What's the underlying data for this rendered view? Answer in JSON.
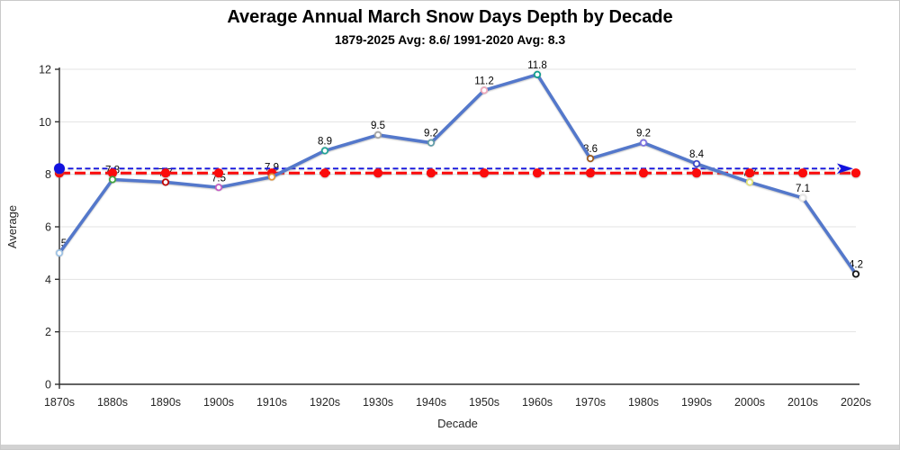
{
  "chart_data": {
    "type": "line",
    "title": "Average Annual March Snow Days Depth by Decade",
    "subtitle": "1879-2025 Avg: 8.6/ 1991-2020 Avg: 8.3",
    "xlabel": "Decade",
    "ylabel": "Average",
    "ylim": [
      0,
      12
    ],
    "yticks": [
      0,
      2,
      4,
      6,
      8,
      10,
      12
    ],
    "grid": true,
    "legend": "none",
    "categories": [
      "1870s",
      "1880s",
      "1890s",
      "1900s",
      "1910s",
      "1920s",
      "1930s",
      "1940s",
      "1950s",
      "1960s",
      "1970s",
      "1980s",
      "1990s",
      "2000s",
      "2010s",
      "2020s"
    ],
    "series": [
      {
        "values": [
          5,
          7.8,
          7.7,
          7.5,
          7.9,
          8.9,
          9.5,
          9.2,
          11.2,
          11.8,
          8.6,
          9.2,
          8.4,
          7.7,
          7.1,
          4.2
        ],
        "point_labels": [
          "5",
          "7.8",
          "7.7",
          "7.5",
          "7.9",
          "8.9",
          "9.5",
          "9.2",
          "11.2",
          "11.8",
          "8.6",
          "9.2",
          "8.4",
          "7.7",
          "7.1",
          "4.2"
        ],
        "line_color": "#5478CB",
        "marker_fill": "#ffffff",
        "marker_colors": [
          "#9DC3E6",
          "#3FA53F",
          "#C00000",
          "#C55AC5",
          "#E8973A",
          "#1FA396",
          "#A6A6A6",
          "#5E9CA8",
          "#EFA8BC",
          "#0E9E8E",
          "#9C5718",
          "#7B6FE0",
          "#3A46C8",
          "#E3E375",
          "#E9E9E9",
          "#111111"
        ]
      }
    ],
    "ref_lines": [
      {
        "name": "red-dashed-reference-line",
        "value": 8.05,
        "color": "#FB0B0B",
        "style": "thick-dashed",
        "dots_at_each_category": true
      },
      {
        "name": "blue-dashed-reference-line",
        "value": 8.22,
        "color": "#1212DF",
        "style": "thin-dashed",
        "start_dot": true,
        "end_arrow": true
      }
    ],
    "colors": {
      "grid": "#e3e3e3",
      "axis": "#2f2f2f"
    }
  }
}
